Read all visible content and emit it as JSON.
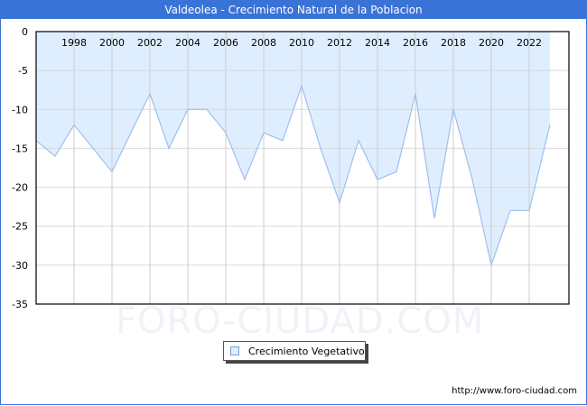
{
  "header": {
    "title": "Valdeolea - Crecimiento Natural de la Poblacion"
  },
  "legend": {
    "label": "Crecimiento Vegetativo"
  },
  "footer": {
    "url": "http://www.foro-ciudad.com"
  },
  "watermark": {
    "text": "FORO-CIUDAD.COM"
  },
  "colors": {
    "title_bg": "#3a73d6",
    "fill": "#dfeeff",
    "line": "#9fbfee",
    "grid": "#d9d9d9"
  },
  "chart_data": {
    "type": "area",
    "title": "Valdeolea - Crecimiento Natural de la Poblacion",
    "xlabel": "",
    "ylabel": "",
    "ylim": [
      -35,
      0
    ],
    "yticks": [
      0,
      -5,
      -10,
      -15,
      -20,
      -25,
      -30,
      -35
    ],
    "xtick_labels": [
      "1998",
      "2000",
      "2002",
      "2004",
      "2006",
      "2008",
      "2010",
      "2012",
      "2014",
      "2016",
      "2018",
      "2020",
      "2022"
    ],
    "grid": true,
    "legend_position": "bottom",
    "x": [
      1996,
      1997,
      1998,
      1999,
      2000,
      2001,
      2002,
      2003,
      2004,
      2005,
      2006,
      2007,
      2008,
      2009,
      2010,
      2011,
      2012,
      2013,
      2014,
      2015,
      2016,
      2017,
      2018,
      2019,
      2020,
      2021,
      2022,
      2023
    ],
    "series": [
      {
        "name": "Crecimiento Vegetativo",
        "values": [
          -14,
          -16,
          -12,
          -15,
          -18,
          -13,
          -8,
          -15,
          -10,
          -10,
          -13,
          -19,
          -13,
          -14,
          -7,
          -15,
          -22,
          -14,
          -19,
          -18,
          -8,
          -24,
          -10,
          -19,
          -30,
          -23,
          -23,
          -12
        ]
      }
    ]
  }
}
